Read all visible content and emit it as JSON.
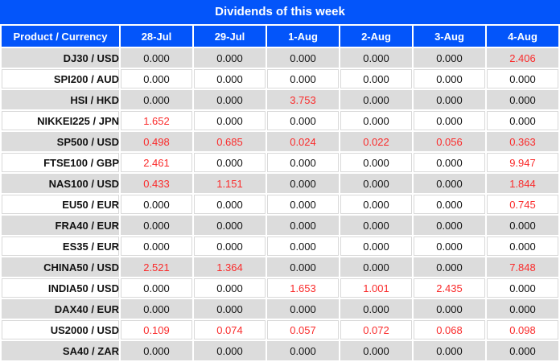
{
  "title": "Dividends of this week",
  "columns": [
    "Product / Currency",
    "28-Jul",
    "29-Jul",
    "1-Aug",
    "2-Aug",
    "3-Aug",
    "4-Aug"
  ],
  "rows": [
    {
      "product": "DJ30 / USD",
      "values": [
        "0.000",
        "0.000",
        "0.000",
        "0.000",
        "0.000",
        "2.406"
      ]
    },
    {
      "product": "SPI200 / AUD",
      "values": [
        "0.000",
        "0.000",
        "0.000",
        "0.000",
        "0.000",
        "0.000"
      ]
    },
    {
      "product": "HSI / HKD",
      "values": [
        "0.000",
        "0.000",
        "3.753",
        "0.000",
        "0.000",
        "0.000"
      ]
    },
    {
      "product": "NIKKEI225 / JPN",
      "values": [
        "1.652",
        "0.000",
        "0.000",
        "0.000",
        "0.000",
        "0.000"
      ]
    },
    {
      "product": "SP500 / USD",
      "values": [
        "0.498",
        "0.685",
        "0.024",
        "0.022",
        "0.056",
        "0.363"
      ]
    },
    {
      "product": "FTSE100 / GBP",
      "values": [
        "2.461",
        "0.000",
        "0.000",
        "0.000",
        "0.000",
        "9.947"
      ]
    },
    {
      "product": "NAS100 / USD",
      "values": [
        "0.433",
        "1.151",
        "0.000",
        "0.000",
        "0.000",
        "1.844"
      ]
    },
    {
      "product": "EU50 / EUR",
      "values": [
        "0.000",
        "0.000",
        "0.000",
        "0.000",
        "0.000",
        "0.745"
      ]
    },
    {
      "product": "FRA40 / EUR",
      "values": [
        "0.000",
        "0.000",
        "0.000",
        "0.000",
        "0.000",
        "0.000"
      ]
    },
    {
      "product": "ES35 / EUR",
      "values": [
        "0.000",
        "0.000",
        "0.000",
        "0.000",
        "0.000",
        "0.000"
      ]
    },
    {
      "product": "CHINA50 / USD",
      "values": [
        "2.521",
        "1.364",
        "0.000",
        "0.000",
        "0.000",
        "7.848"
      ]
    },
    {
      "product": "INDIA50 / USD",
      "values": [
        "0.000",
        "0.000",
        "1.653",
        "1.001",
        "2.435",
        "0.000"
      ]
    },
    {
      "product": "DAX40 / EUR",
      "values": [
        "0.000",
        "0.000",
        "0.000",
        "0.000",
        "0.000",
        "0.000"
      ]
    },
    {
      "product": "US2000 / USD",
      "values": [
        "0.109",
        "0.074",
        "0.057",
        "0.072",
        "0.068",
        "0.098"
      ]
    },
    {
      "product": "SA40 / ZAR",
      "values": [
        "0.000",
        "0.000",
        "0.000",
        "0.000",
        "0.000",
        "0.000"
      ]
    }
  ],
  "colors": {
    "header_blue": "#0355fa",
    "row_gray": "#dcdcdc",
    "positive_red": "#fa2b2b",
    "text_dark": "#121212"
  }
}
